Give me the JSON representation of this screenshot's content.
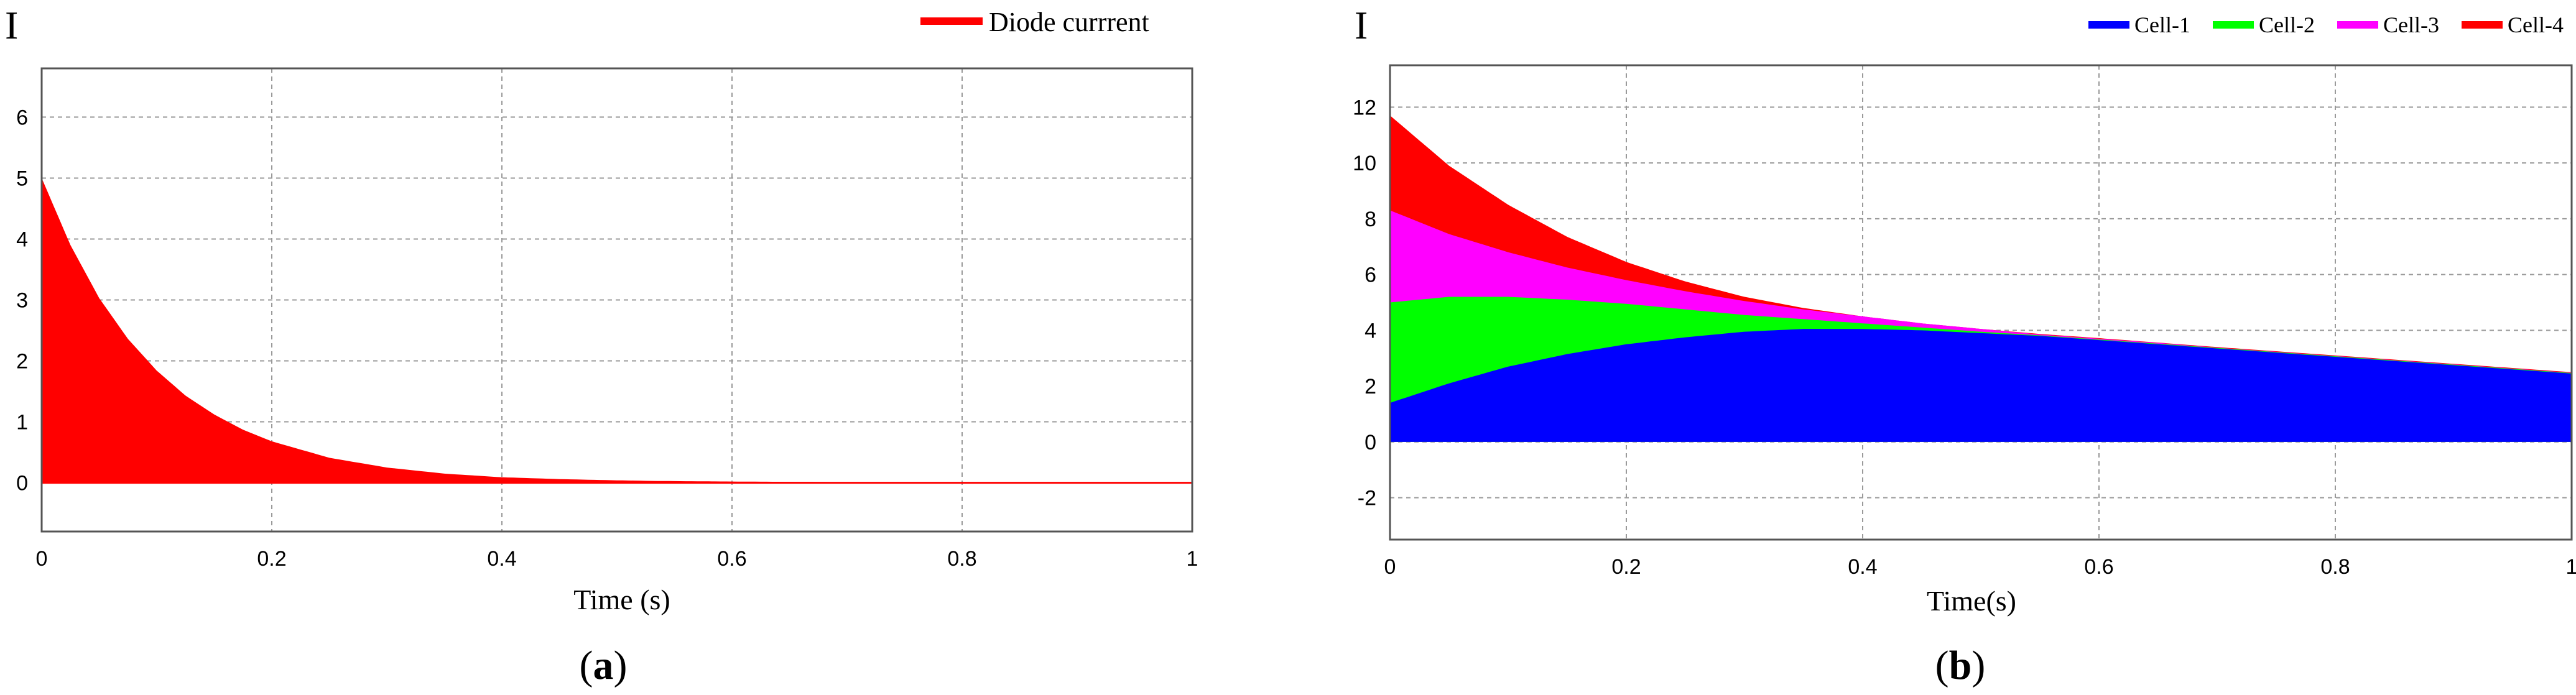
{
  "chart_data": [
    {
      "type": "area",
      "panel_label": "a",
      "ylabel": "I",
      "xlabel": "Time (s)",
      "xlim": [
        0,
        1
      ],
      "ylim": [
        -0.8,
        6.8
      ],
      "xticks": [
        0,
        0.2,
        0.4,
        0.6,
        0.8,
        1
      ],
      "xtick_labels": [
        "0",
        "0.2",
        "0.4",
        "0.6",
        "0.8",
        "1"
      ],
      "yticks": [
        0,
        1,
        2,
        3,
        4,
        5,
        6
      ],
      "ytick_labels": [
        "0",
        "1",
        "2",
        "3",
        "4",
        "5",
        "6"
      ],
      "grid": true,
      "legend_position": "top-right",
      "series": [
        {
          "name": "Diode currrent",
          "color": "#ff0000",
          "x": [
            0,
            0.025,
            0.05,
            0.075,
            0.1,
            0.125,
            0.15,
            0.175,
            0.2,
            0.25,
            0.3,
            0.35,
            0.4,
            0.45,
            0.5,
            0.53,
            0.6,
            0.7,
            0.8,
            0.9,
            1.0
          ],
          "y": [
            5.0,
            3.9,
            3.03,
            2.36,
            1.84,
            1.43,
            1.12,
            0.87,
            0.68,
            0.41,
            0.25,
            0.15,
            0.09,
            0.06,
            0.04,
            0.03,
            0.02,
            0.01,
            0.01,
            0.0,
            0.0
          ]
        }
      ]
    },
    {
      "type": "area",
      "panel_label": "b",
      "ylabel": "I",
      "xlabel": "Time(s)",
      "xlim": [
        0,
        1
      ],
      "ylim": [
        -3.5,
        13.5
      ],
      "xticks": [
        0,
        0.2,
        0.4,
        0.6,
        0.8,
        1
      ],
      "xtick_labels": [
        "0",
        "0.2",
        "0.4",
        "0.6",
        "0.8",
        "1"
      ],
      "yticks": [
        -2,
        0,
        2,
        4,
        6,
        8,
        10,
        12
      ],
      "ytick_labels": [
        "-2",
        "0",
        "2",
        "4",
        "6",
        "8",
        "10",
        "12"
      ],
      "grid": true,
      "legend_position": "top-right",
      "x": [
        0,
        0.05,
        0.1,
        0.15,
        0.2,
        0.25,
        0.3,
        0.35,
        0.4,
        0.45,
        0.5,
        0.55,
        0.6,
        0.65,
        0.7,
        0.75,
        0.8,
        0.85,
        0.9,
        0.95,
        1.0
      ],
      "series": [
        {
          "name": "Cell-1",
          "color": "#0000ff",
          "y": [
            1.4,
            2.1,
            2.7,
            3.15,
            3.5,
            3.75,
            3.95,
            4.05,
            4.05,
            4.0,
            3.9,
            3.8,
            3.65,
            3.5,
            3.35,
            3.2,
            3.05,
            2.9,
            2.75,
            2.6,
            2.45
          ]
        },
        {
          "name": "Cell-2",
          "color": "#00ff00",
          "y": [
            5.0,
            5.2,
            5.2,
            5.1,
            4.95,
            4.75,
            4.55,
            4.4,
            4.25,
            4.1,
            3.95,
            3.82,
            3.67,
            3.52,
            3.37,
            3.22,
            3.07,
            2.92,
            2.77,
            2.62,
            2.47
          ]
        },
        {
          "name": "Cell-3",
          "color": "#ff00ff",
          "y": [
            8.3,
            7.45,
            6.8,
            6.25,
            5.8,
            5.4,
            5.05,
            4.75,
            4.5,
            4.25,
            4.05,
            3.85,
            3.7,
            3.55,
            3.38,
            3.23,
            3.08,
            2.93,
            2.78,
            2.63,
            2.48
          ]
        },
        {
          "name": "Cell-4",
          "color": "#ff0000",
          "y": [
            11.7,
            9.9,
            8.5,
            7.35,
            6.45,
            5.75,
            5.2,
            4.8,
            4.5,
            4.25,
            4.05,
            3.87,
            3.72,
            3.56,
            3.4,
            3.25,
            3.1,
            2.95,
            2.8,
            2.65,
            2.5
          ]
        }
      ]
    }
  ]
}
